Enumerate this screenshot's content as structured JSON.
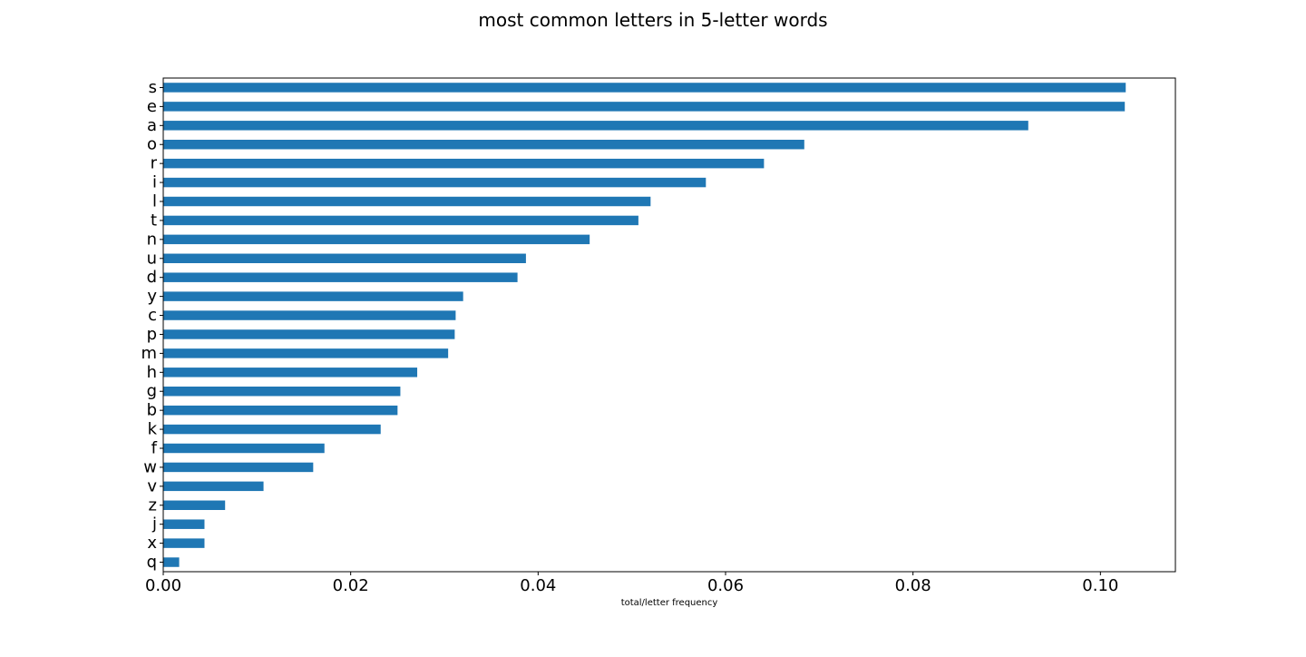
{
  "chart_data": {
    "type": "bar",
    "orientation": "horizontal",
    "title": "most common letters in 5-letter words",
    "xlabel": "total/letter frequency",
    "ylabel": "",
    "categories": [
      "s",
      "e",
      "a",
      "o",
      "r",
      "i",
      "l",
      "t",
      "n",
      "u",
      "d",
      "y",
      "c",
      "p",
      "m",
      "h",
      "g",
      "b",
      "k",
      "f",
      "w",
      "v",
      "z",
      "j",
      "x",
      "q"
    ],
    "values": [
      0.1027,
      0.1026,
      0.0923,
      0.0684,
      0.0641,
      0.0579,
      0.052,
      0.0507,
      0.0455,
      0.0387,
      0.0378,
      0.032,
      0.0312,
      0.0311,
      0.0304,
      0.0271,
      0.0253,
      0.025,
      0.0232,
      0.0172,
      0.016,
      0.0107,
      0.0066,
      0.0044,
      0.0044,
      0.0017
    ],
    "xlim": [
      0,
      0.108
    ],
    "xticks": [
      0.0,
      0.02,
      0.04,
      0.06,
      0.08,
      0.1
    ],
    "xtick_labels": [
      "0.00",
      "0.02",
      "0.04",
      "0.06",
      "0.08",
      "0.10"
    ],
    "grid": false,
    "colors": {
      "bar": "#1f77b4",
      "axes": "#000000",
      "background": "#ffffff"
    }
  }
}
